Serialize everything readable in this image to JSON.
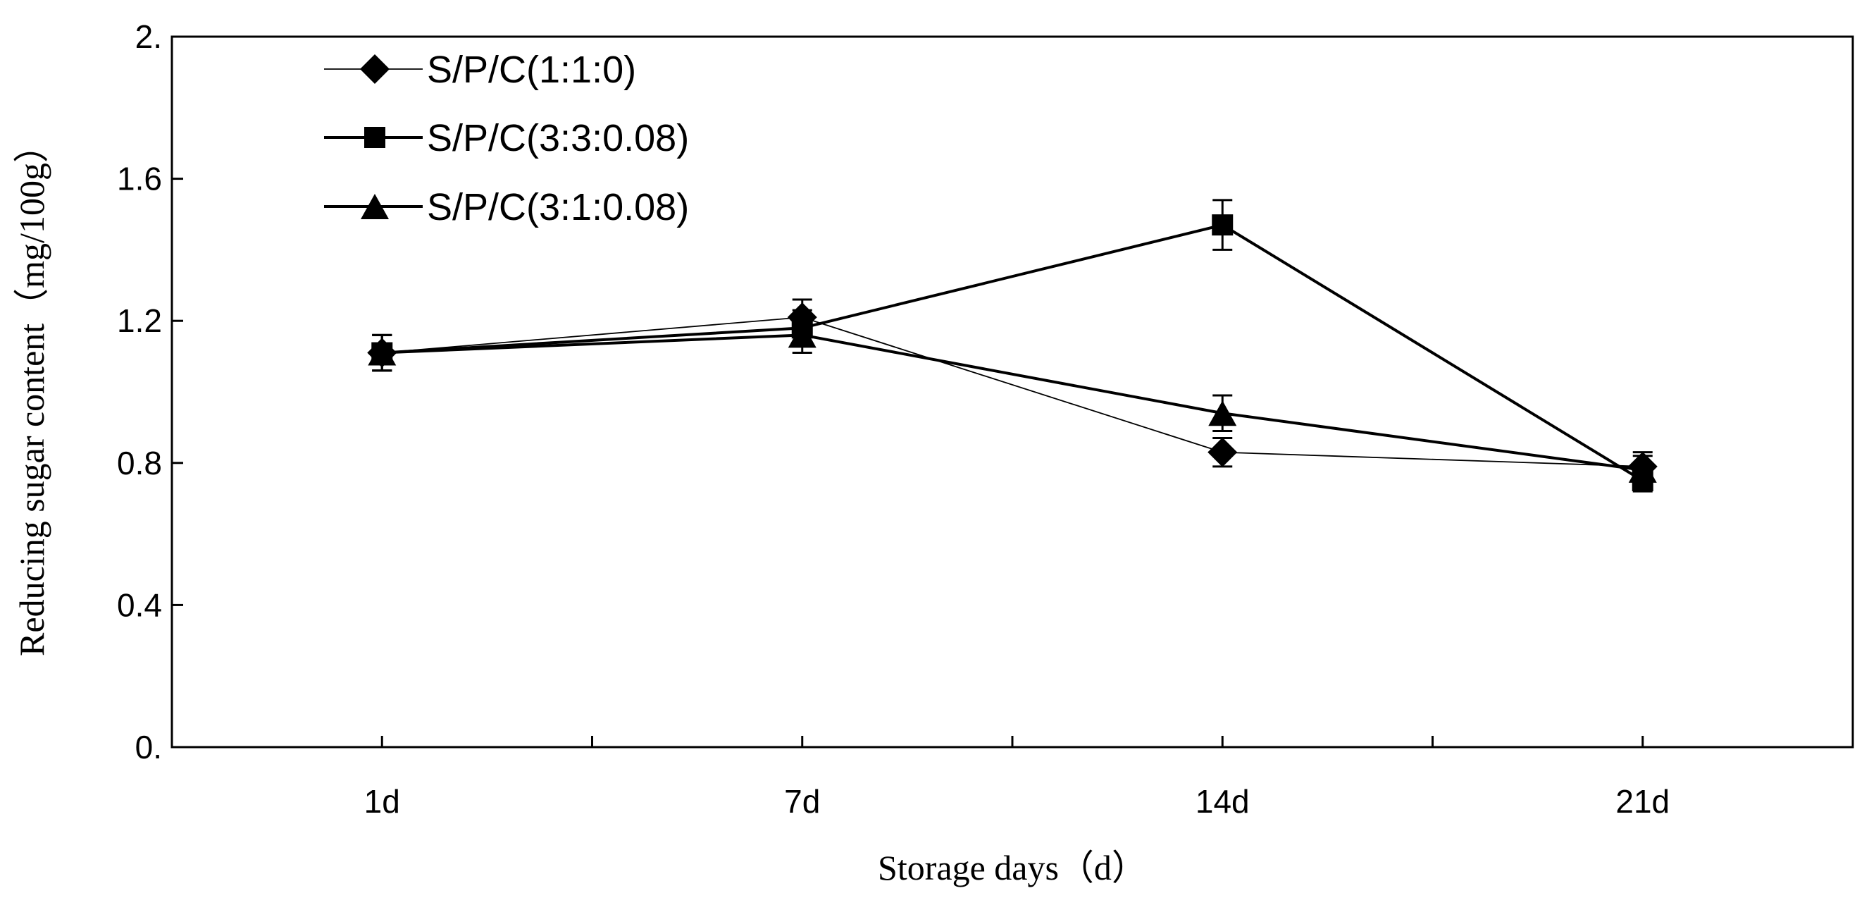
{
  "chart_data": {
    "type": "line",
    "categories": [
      "1d",
      "7d",
      "14d",
      "21d"
    ],
    "xlabel": "Storage days（d）",
    "ylabel": "Reducing sugar content（mg/100g）",
    "ylim": [
      0,
      2.0
    ],
    "y_ticks": [
      {
        "value": 0,
        "label": "0."
      },
      {
        "value": 0.4,
        "label": "0.4"
      },
      {
        "value": 0.8,
        "label": "0.8"
      },
      {
        "value": 1.2,
        "label": "1.2"
      },
      {
        "value": 1.6,
        "label": "1.6"
      },
      {
        "value": 2.0,
        "label": "2."
      }
    ],
    "grid": false,
    "legend_position": "top-left",
    "series": [
      {
        "name": "S/P/C(1:1:0)",
        "marker": "diamond",
        "line": "thin",
        "values": [
          1.11,
          1.21,
          0.83,
          0.79
        ],
        "errors": [
          0.05,
          0.05,
          0.04,
          0.04
        ]
      },
      {
        "name": "S/P/C(3:3:0.08)",
        "marker": "square",
        "line": "thick",
        "values": [
          1.11,
          1.18,
          1.47,
          0.75
        ],
        "errors": [
          0.05,
          0.05,
          0.07,
          0.03
        ]
      },
      {
        "name": "S/P/C(3:1:0.08)",
        "marker": "triangle",
        "line": "thick",
        "values": [
          1.11,
          1.16,
          0.94,
          0.78
        ],
        "errors": [
          0.05,
          0.05,
          0.05,
          0.04
        ]
      }
    ]
  }
}
